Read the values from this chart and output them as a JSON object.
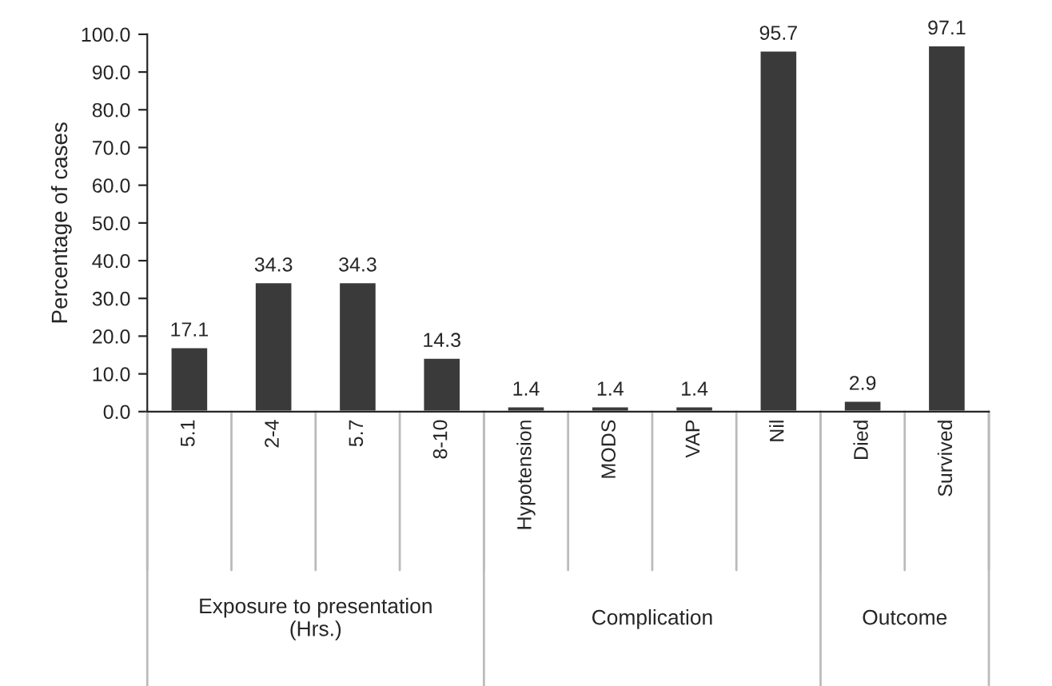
{
  "chart_data": {
    "type": "bar",
    "ylabel": "Percentage of cases",
    "categories": [
      "5.1",
      "2-4",
      "5.7",
      "8-10",
      "Hypotension",
      "MODS",
      "VAP",
      "Nil",
      "Died",
      "Survived"
    ],
    "values": [
      17.1,
      34.3,
      34.3,
      14.3,
      1.4,
      1.4,
      1.4,
      95.7,
      2.9,
      97.1
    ],
    "color": "#3a3a3a",
    "ylim": [
      0,
      100
    ],
    "yticks": [
      {
        "value": 0,
        "label": "0.0"
      },
      {
        "value": 10,
        "label": "10.0"
      },
      {
        "value": 20,
        "label": "20.0"
      },
      {
        "value": 30,
        "label": "30.0"
      },
      {
        "value": 40,
        "label": "40.0"
      },
      {
        "value": 50,
        "label": "50.0"
      },
      {
        "value": 60,
        "label": "60.0"
      },
      {
        "value": 70,
        "label": "70.0"
      },
      {
        "value": 80,
        "label": "80.0"
      },
      {
        "value": 90,
        "label": "90.0"
      },
      {
        "value": 100,
        "label": "100.0"
      }
    ],
    "data_labels": true,
    "grid": false,
    "annotations": [
      "Exposure to presentation\n(Hrs.)",
      "Complication",
      "Outcome"
    ]
  }
}
